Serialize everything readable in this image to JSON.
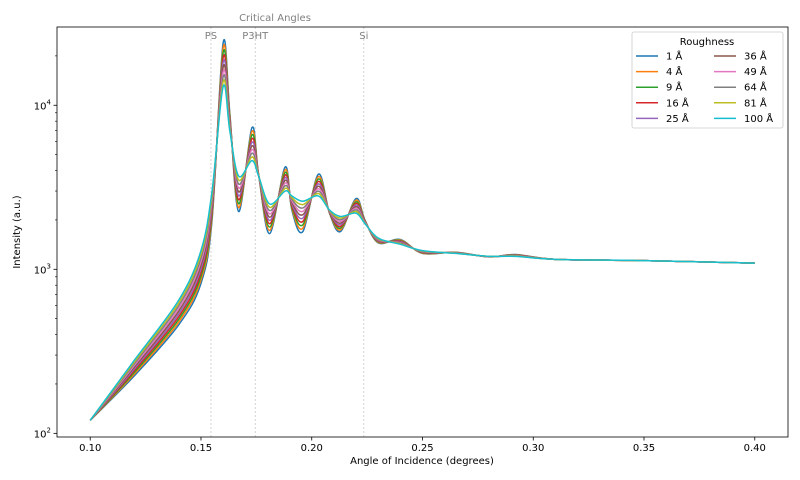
{
  "chart_data": {
    "type": "line",
    "title": "",
    "xlabel": "Angle of Incidence (degrees)",
    "ylabel": "Intensity (a.u.)",
    "xlim": [
      0.085,
      0.415
    ],
    "ylim": [
      95,
      30000
    ],
    "yscale": "log",
    "grid": false,
    "x_ticks": [
      0.1,
      0.15,
      0.2,
      0.25,
      0.3,
      0.35,
      0.4
    ],
    "x_tick_labels": [
      "0.10",
      "0.15",
      "0.20",
      "0.25",
      "0.30",
      "0.35",
      "0.40"
    ],
    "y_ticks": [
      100,
      1000,
      10000
    ],
    "y_tick_base": "10",
    "y_tick_exponents": [
      "2",
      "3",
      "4"
    ],
    "annotation": {
      "label": "Critical Angles",
      "lines": [
        {
          "label": "PS",
          "x": 0.1545
        },
        {
          "label": "P3HT",
          "x": 0.1745
        },
        {
          "label": "Si",
          "x": 0.2235
        }
      ]
    },
    "legend": {
      "title": "Roughness",
      "placement": "top-right",
      "columns": 2
    },
    "series": [
      {
        "name": "1 Å",
        "roughness": 1,
        "color": "#1f77b4"
      },
      {
        "name": "4 Å",
        "roughness": 4,
        "color": "#ff7f0e"
      },
      {
        "name": "9 Å",
        "roughness": 9,
        "color": "#2ca02c"
      },
      {
        "name": "16 Å",
        "roughness": 16,
        "color": "#d62728"
      },
      {
        "name": "25 Å",
        "roughness": 25,
        "color": "#9467bd"
      },
      {
        "name": "36 Å",
        "roughness": 36,
        "color": "#8c564b"
      },
      {
        "name": "49 Å",
        "roughness": 49,
        "color": "#e377c2"
      },
      {
        "name": "64 Å",
        "roughness": 64,
        "color": "#7f7f7f"
      },
      {
        "name": "81 Å",
        "roughness": 81,
        "color": "#bcbd22"
      },
      {
        "name": "100 Å",
        "roughness": 100,
        "color": "#17becf"
      }
    ],
    "envelope_points": {
      "sharpest": [
        [
          0.1,
          120
        ],
        [
          0.12,
          225
        ],
        [
          0.14,
          460
        ],
        [
          0.15,
          820
        ],
        [
          0.155,
          2000
        ],
        [
          0.16,
          24000
        ],
        [
          0.163,
          9000
        ],
        [
          0.167,
          2250
        ],
        [
          0.173,
          7300
        ],
        [
          0.176,
          3800
        ],
        [
          0.181,
          1650
        ],
        [
          0.188,
          4200
        ],
        [
          0.191,
          2300
        ],
        [
          0.196,
          1700
        ],
        [
          0.203,
          3800
        ],
        [
          0.208,
          2200
        ],
        [
          0.213,
          1700
        ],
        [
          0.22,
          2700
        ],
        [
          0.224,
          2000
        ],
        [
          0.23,
          1450
        ],
        [
          0.24,
          1520
        ],
        [
          0.25,
          1250
        ],
        [
          0.265,
          1270
        ],
        [
          0.28,
          1190
        ],
        [
          0.292,
          1230
        ],
        [
          0.31,
          1150
        ],
        [
          0.35,
          1130
        ],
        [
          0.4,
          1090
        ]
      ],
      "smoothest": [
        [
          0.1,
          120
        ],
        [
          0.12,
          280
        ],
        [
          0.14,
          650
        ],
        [
          0.15,
          1300
        ],
        [
          0.155,
          3000
        ],
        [
          0.16,
          13000
        ],
        [
          0.163,
          7000
        ],
        [
          0.167,
          3700
        ],
        [
          0.173,
          4600
        ],
        [
          0.176,
          3700
        ],
        [
          0.181,
          2500
        ],
        [
          0.188,
          3000
        ],
        [
          0.191,
          2800
        ],
        [
          0.196,
          2600
        ],
        [
          0.203,
          2800
        ],
        [
          0.208,
          2300
        ],
        [
          0.213,
          2100
        ],
        [
          0.22,
          2200
        ],
        [
          0.224,
          1900
        ],
        [
          0.23,
          1550
        ],
        [
          0.24,
          1420
        ],
        [
          0.25,
          1300
        ],
        [
          0.265,
          1250
        ],
        [
          0.28,
          1200
        ],
        [
          0.292,
          1200
        ],
        [
          0.31,
          1150
        ],
        [
          0.35,
          1130
        ],
        [
          0.4,
          1090
        ]
      ]
    }
  }
}
